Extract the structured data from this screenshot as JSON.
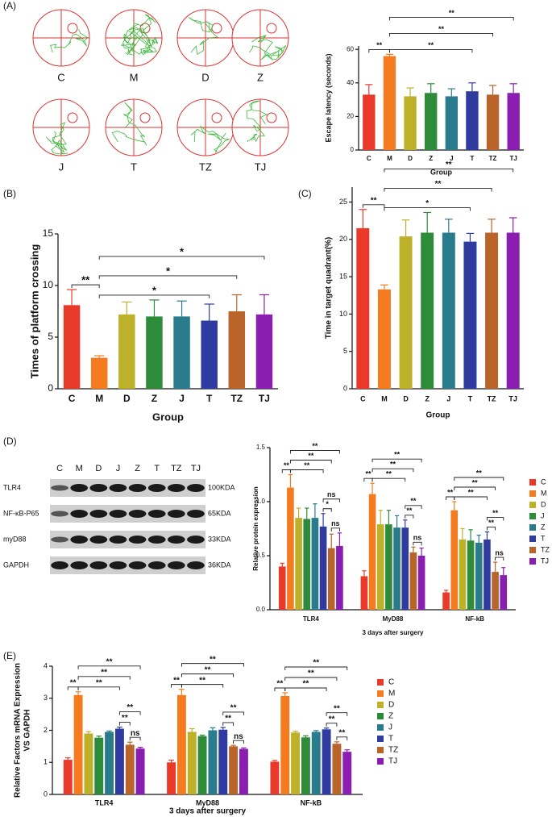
{
  "panel_labels": [
    "(A)",
    "(B)",
    "(C)",
    "(D)",
    "(E)"
  ],
  "maze_labels": [
    "C",
    "M",
    "D",
    "Z",
    "J",
    "T",
    "TZ",
    "TJ"
  ],
  "blot": {
    "lanes": [
      "C",
      "M",
      "D",
      "J",
      "Z",
      "T",
      "TZ",
      "TJ"
    ],
    "rows": [
      {
        "name": "TLR4",
        "size": "100KDA"
      },
      {
        "name": "NF-κB-P65",
        "size": "65KDA"
      },
      {
        "name": "myD88",
        "size": "33KDA"
      },
      {
        "name": "GAPDH",
        "size": "36KDA"
      }
    ]
  },
  "chart_data": [
    {
      "type": "bar",
      "categories": [
        "C",
        "M",
        "D",
        "Z",
        "J",
        "T",
        "TZ",
        "TJ"
      ],
      "values": [
        33,
        56,
        32,
        34,
        32,
        35,
        33,
        34
      ],
      "errors": [
        6,
        1,
        5,
        5.5,
        4.5,
        5,
        5.5,
        5.5
      ],
      "colors": [
        "#e8392a",
        "#f47b20",
        "#bdb12a",
        "#2e8b3a",
        "#2a7b8c",
        "#2f3b9e",
        "#b8642a",
        "#8a1eb0"
      ],
      "ylim": [
        0,
        62
      ],
      "yticks": [
        0,
        20,
        40,
        60
      ],
      "y_label": "Escape latency (seconds)",
      "x_label": "Group",
      "brackets": [
        {
          "between": [
            "C",
            "M"
          ],
          "label": "**"
        },
        {
          "between": [
            "M",
            "T"
          ],
          "label": "**"
        },
        {
          "between": [
            "M",
            "TZ"
          ],
          "label": "**"
        },
        {
          "between": [
            "M",
            "TJ"
          ],
          "label": "**"
        }
      ]
    },
    {
      "type": "bar",
      "categories": [
        "C",
        "M",
        "D",
        "Z",
        "J",
        "T",
        "TZ",
        "TJ"
      ],
      "values": [
        8.1,
        3,
        7.2,
        7,
        7,
        6.6,
        7.5,
        7.2
      ],
      "errors": [
        1.5,
        0.2,
        1.2,
        1.6,
        1.5,
        1.6,
        1.6,
        1.9
      ],
      "colors": [
        "#e8392a",
        "#f47b20",
        "#bdb12a",
        "#2e8b3a",
        "#2a7b8c",
        "#2f3b9e",
        "#b8642a",
        "#8a1eb0"
      ],
      "ylim": [
        0,
        15
      ],
      "yticks": [
        0,
        5,
        10,
        15
      ],
      "y_label": "Times of platform crossing",
      "x_label": "Group",
      "brackets": [
        {
          "between": [
            "C",
            "M"
          ],
          "label": "**"
        },
        {
          "between": [
            "M",
            "T"
          ],
          "label": "*"
        },
        {
          "between": [
            "M",
            "TZ"
          ],
          "label": "*"
        },
        {
          "between": [
            "M",
            "TJ"
          ],
          "label": "*"
        }
      ]
    },
    {
      "type": "bar",
      "categories": [
        "C",
        "M",
        "D",
        "Z",
        "J",
        "T",
        "TZ",
        "TJ"
      ],
      "values": [
        21.5,
        13.3,
        20.4,
        20.9,
        20.9,
        19.7,
        20.9,
        20.9
      ],
      "errors": [
        2.5,
        0.6,
        2.2,
        2.7,
        1.8,
        1.1,
        1.8,
        2
      ],
      "colors": [
        "#e8392a",
        "#f47b20",
        "#bdb12a",
        "#2e8b3a",
        "#2a7b8c",
        "#2f3b9e",
        "#b8642a",
        "#8a1eb0"
      ],
      "ylim": [
        0,
        27
      ],
      "yticks": [
        0,
        5,
        10,
        15,
        20,
        25
      ],
      "y_label": "Time in target quadrant(%)",
      "x_label": "Group",
      "brackets": [
        {
          "between": [
            "C",
            "M"
          ],
          "label": "**"
        },
        {
          "between": [
            "M",
            "T"
          ],
          "label": "*"
        },
        {
          "between": [
            "M",
            "TZ"
          ],
          "label": "**"
        },
        {
          "between": [
            "M",
            "TJ"
          ],
          "label": "**"
        }
      ]
    },
    {
      "type": "bar",
      "categories": [
        "TLR4",
        "MyD88",
        "NF-kB"
      ],
      "series": [
        {
          "name": "C",
          "color": "#e8392a",
          "values": [
            0.4,
            0.31,
            0.16
          ],
          "errors": [
            0.03,
            0.05,
            0.02
          ]
        },
        {
          "name": "M",
          "color": "#f47b20",
          "values": [
            1.13,
            1.07,
            0.92
          ],
          "errors": [
            0.12,
            0.1,
            0.08
          ]
        },
        {
          "name": "D",
          "color": "#bdb12a",
          "values": [
            0.85,
            0.79,
            0.65
          ],
          "errors": [
            0.09,
            0.13,
            0.1
          ]
        },
        {
          "name": "J",
          "color": "#2e8b3a",
          "values": [
            0.84,
            0.79,
            0.64
          ],
          "errors": [
            0.1,
            0.13,
            0.1
          ]
        },
        {
          "name": "Z",
          "color": "#2a7b8c",
          "values": [
            0.85,
            0.76,
            0.62
          ],
          "errors": [
            0.13,
            0.11,
            0.07
          ]
        },
        {
          "name": "T",
          "color": "#2f3b9e",
          "values": [
            0.77,
            0.76,
            0.65
          ],
          "errors": [
            0.12,
            0.07,
            0.07
          ]
        },
        {
          "name": "TZ",
          "color": "#b8642a",
          "values": [
            0.57,
            0.53,
            0.35
          ],
          "errors": [
            0.13,
            0.05,
            0.09
          ]
        },
        {
          "name": "TJ",
          "color": "#8a1eb0",
          "values": [
            0.59,
            0.5,
            0.32
          ],
          "errors": [
            0.12,
            0.07,
            0.07
          ]
        }
      ],
      "ylim": [
        0,
        1.5
      ],
      "yticks": [
        {
          "value": 0,
          "label": "0.0"
        },
        0.5,
        {
          "value": 1,
          "label": "1.0"
        },
        1.5
      ],
      "y_label": "Relative protein expression",
      "x_label": "3 days after surgery",
      "brackets": [
        {
          "category": "TLR4",
          "between": [
            "C",
            "M"
          ],
          "label": "**"
        },
        {
          "category": "TLR4",
          "between": [
            "TZ",
            "TJ"
          ],
          "label": "ns"
        },
        {
          "category": "TLR4",
          "between": [
            "T",
            "TZ"
          ],
          "label": "*"
        },
        {
          "category": "TLR4",
          "between": [
            "T",
            "TJ"
          ],
          "label": "ns"
        },
        {
          "category": "TLR4",
          "between": [
            "M",
            "T"
          ],
          "label": "**"
        },
        {
          "category": "TLR4",
          "between": [
            "M",
            "TZ"
          ],
          "label": "**"
        },
        {
          "category": "TLR4",
          "between": [
            "M",
            "TJ"
          ],
          "label": "**"
        },
        {
          "category": "MyD88",
          "between": [
            "C",
            "M"
          ],
          "label": "**"
        },
        {
          "category": "MyD88",
          "between": [
            "TZ",
            "TJ"
          ],
          "label": "ns"
        },
        {
          "category": "MyD88",
          "between": [
            "T",
            "TZ"
          ],
          "label": "**"
        },
        {
          "category": "MyD88",
          "between": [
            "T",
            "TJ"
          ],
          "label": "**"
        },
        {
          "category": "MyD88",
          "between": [
            "M",
            "T"
          ],
          "label": "**"
        },
        {
          "category": "MyD88",
          "between": [
            "M",
            "TZ"
          ],
          "label": "**"
        },
        {
          "category": "MyD88",
          "between": [
            "M",
            "TJ"
          ],
          "label": "**"
        },
        {
          "category": "NF-kB",
          "between": [
            "C",
            "M"
          ],
          "label": "**"
        },
        {
          "category": "NF-kB",
          "between": [
            "TZ",
            "TJ"
          ],
          "label": "ns"
        },
        {
          "category": "NF-kB",
          "between": [
            "T",
            "TZ"
          ],
          "label": "**"
        },
        {
          "category": "NF-kB",
          "between": [
            "T",
            "TJ"
          ],
          "label": "**"
        },
        {
          "category": "NF-kB",
          "between": [
            "M",
            "T"
          ],
          "label": "**"
        },
        {
          "category": "NF-kB",
          "between": [
            "M",
            "TZ"
          ],
          "label": "**"
        },
        {
          "category": "NF-kB",
          "between": [
            "M",
            "TJ"
          ],
          "label": "**"
        }
      ]
    },
    {
      "type": "bar",
      "categories": [
        "TLR4",
        "MyD88",
        "NF-kB"
      ],
      "series": [
        {
          "name": "C",
          "color": "#e8392a",
          "values": [
            1.08,
            1.0,
            1.02
          ],
          "errors": [
            0.06,
            0.07,
            0.04
          ]
        },
        {
          "name": "M",
          "color": "#f47b20",
          "values": [
            3.1,
            3.1,
            3.07
          ],
          "errors": [
            0.1,
            0.18,
            0.1
          ]
        },
        {
          "name": "D",
          "color": "#bdb12a",
          "values": [
            1.9,
            1.95,
            1.93
          ],
          "errors": [
            0.06,
            0.1,
            0.04
          ]
        },
        {
          "name": "Z",
          "color": "#2e8b3a",
          "values": [
            1.77,
            1.82,
            1.78
          ],
          "errors": [
            0.05,
            0.03,
            0.05
          ]
        },
        {
          "name": "J",
          "color": "#2a7b8c",
          "values": [
            1.95,
            2.0,
            1.95
          ],
          "errors": [
            0.03,
            0.08,
            0.04
          ]
        },
        {
          "name": "T",
          "color": "#2f3b9e",
          "values": [
            2.05,
            2.02,
            2.03
          ],
          "errors": [
            0.05,
            0.07,
            0.04
          ]
        },
        {
          "name": "TZ",
          "color": "#b8642a",
          "values": [
            1.55,
            1.5,
            1.58
          ],
          "errors": [
            0.08,
            0.03,
            0.06
          ]
        },
        {
          "name": "TJ",
          "color": "#8a1eb0",
          "values": [
            1.43,
            1.42,
            1.33
          ],
          "errors": [
            0.04,
            0.03,
            0.06
          ]
        }
      ],
      "ylim": [
        0,
        4
      ],
      "yticks": [
        0,
        1,
        2,
        3,
        4
      ],
      "y_label": [
        "Relative Factors mRNA Expression",
        "VS GAPDH"
      ],
      "x_label": "3 days after surgery",
      "brackets": [
        {
          "category": "TLR4",
          "between": [
            "C",
            "M"
          ],
          "label": "**"
        },
        {
          "category": "TLR4",
          "between": [
            "TZ",
            "TJ"
          ],
          "label": "ns"
        },
        {
          "category": "TLR4",
          "between": [
            "T",
            "TZ"
          ],
          "label": "**"
        },
        {
          "category": "TLR4",
          "between": [
            "T",
            "TJ"
          ],
          "label": "**"
        },
        {
          "category": "TLR4",
          "between": [
            "M",
            "T"
          ],
          "label": "**"
        },
        {
          "category": "TLR4",
          "between": [
            "M",
            "TZ"
          ],
          "label": "**"
        },
        {
          "category": "TLR4",
          "between": [
            "M",
            "TJ"
          ],
          "label": "**"
        },
        {
          "category": "MyD88",
          "between": [
            "C",
            "M"
          ],
          "label": "**"
        },
        {
          "category": "MyD88",
          "between": [
            "TZ",
            "TJ"
          ],
          "label": "ns"
        },
        {
          "category": "MyD88",
          "between": [
            "T",
            "TZ"
          ],
          "label": "**"
        },
        {
          "category": "MyD88",
          "between": [
            "T",
            "TJ"
          ],
          "label": "**"
        },
        {
          "category": "MyD88",
          "between": [
            "M",
            "T"
          ],
          "label": "**"
        },
        {
          "category": "MyD88",
          "between": [
            "M",
            "TZ"
          ],
          "label": "**"
        },
        {
          "category": "MyD88",
          "between": [
            "M",
            "TJ"
          ],
          "label": "**"
        },
        {
          "category": "NF-kB",
          "between": [
            "C",
            "M"
          ],
          "label": "**"
        },
        {
          "category": "NF-kB",
          "between": [
            "TZ",
            "TJ"
          ],
          "label": "**"
        },
        {
          "category": "NF-kB",
          "between": [
            "T",
            "TZ"
          ],
          "label": "**"
        },
        {
          "category": "NF-kB",
          "between": [
            "T",
            "TJ"
          ],
          "label": "**"
        },
        {
          "category": "NF-kB",
          "between": [
            "M",
            "T"
          ],
          "label": "**"
        },
        {
          "category": "NF-kB",
          "between": [
            "M",
            "TZ"
          ],
          "label": "**"
        },
        {
          "category": "NF-kB",
          "between": [
            "M",
            "TJ"
          ],
          "label": "**"
        }
      ]
    }
  ]
}
